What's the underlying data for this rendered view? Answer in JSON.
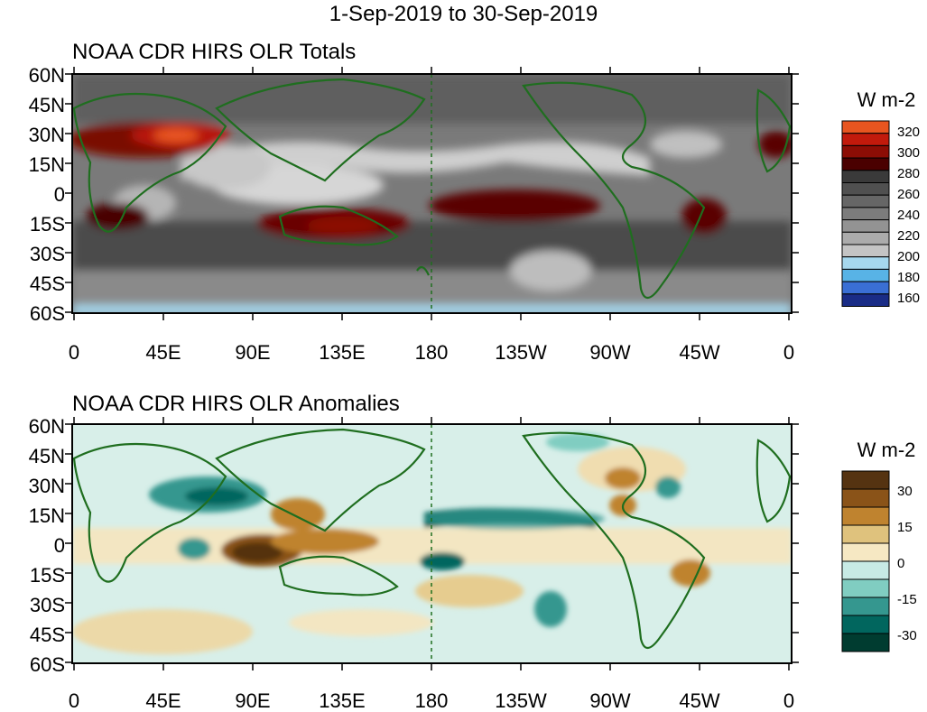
{
  "title": "1-Sep-2019 to 30-Sep-2019",
  "lat_labels": [
    "60N",
    "45N",
    "30N",
    "15N",
    "0",
    "15S",
    "30S",
    "45S",
    "60S"
  ],
  "lon_labels": [
    "0",
    "45E",
    "90E",
    "135E",
    "180",
    "135W",
    "90W",
    "45W",
    "0"
  ],
  "panels": [
    {
      "title": "NOAA CDR HIRS OLR Totals",
      "units": "W m-2",
      "colorbar": {
        "colors": [
          "#e85520",
          "#c21a0c",
          "#8c0d05",
          "#4a0000",
          "#3a3a3a",
          "#505050",
          "#666666",
          "#7c7c7c",
          "#939393",
          "#ababab",
          "#c4c4c4",
          "#a6d8ee",
          "#58b3e6",
          "#3a6fd4",
          "#1a2c86"
        ],
        "labels": [
          "320",
          "300",
          "280",
          "260",
          "240",
          "220",
          "200",
          "180",
          "160"
        ]
      }
    },
    {
      "title": "NOAA CDR HIRS OLR Anomalies",
      "units": "W m-2",
      "colorbar": {
        "colors": [
          "#553311",
          "#8a5318",
          "#bf832f",
          "#dfc27d",
          "#f6e8c3",
          "#c7eae5",
          "#80cdc1",
          "#35978f",
          "#01665e",
          "#003c30"
        ],
        "labels": [
          "30",
          "15",
          "0",
          "-15",
          "-30"
        ]
      }
    }
  ]
}
